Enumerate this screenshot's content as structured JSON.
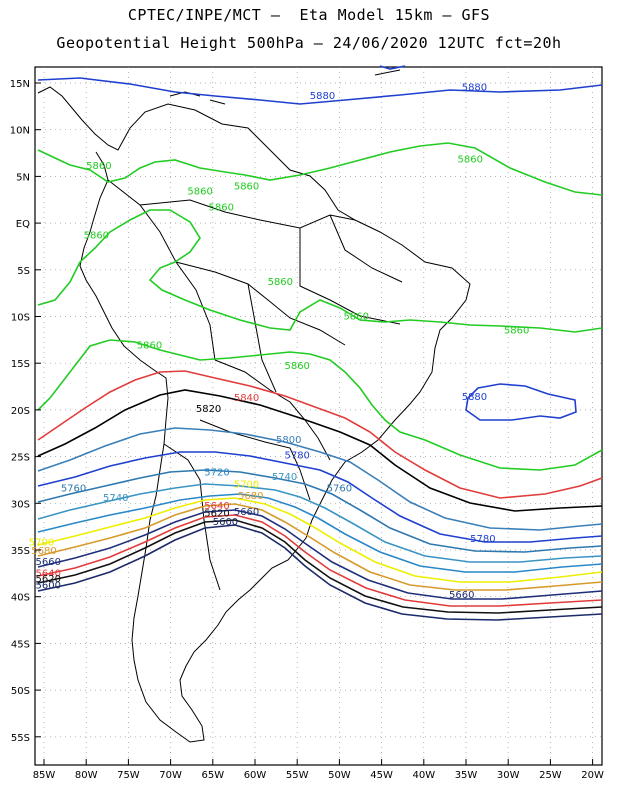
{
  "header": {
    "line1": "CPTEC/INPE/MCT –  Eta Model 15km – GFS",
    "line2": "Geopotential Height 500hPa – 24/06/2020 12UTC fct=20h"
  },
  "axes": {
    "lat_labels": [
      "15N",
      "10N",
      "5N",
      "EQ",
      "5S",
      "10S",
      "15S",
      "20S",
      "25S",
      "30S",
      "35S",
      "40S",
      "45S",
      "50S",
      "55S"
    ],
    "lon_labels": [
      "85W",
      "80W",
      "75W",
      "70W",
      "65W",
      "60W",
      "55W",
      "50W",
      "45W",
      "40W",
      "35W",
      "30W",
      "25W",
      "20W"
    ]
  },
  "colors": {
    "5880": "#1f3fd0",
    "5860": "#22cc22",
    "5840": "#e23b3b",
    "5820": "#000000",
    "5800": "#3a7fb8",
    "5780": "#1f3fd0",
    "5760": "#2e78b0",
    "5740": "#3a94c4",
    "5720": "#2a88c8",
    "5700": "#eeee00",
    "5680": "#d79a2a",
    "5660": "#1f2f7a",
    "5640": "#e23b3b",
    "5620": "#111111",
    "5600": "#1a2a6a"
  },
  "contour_labels": [
    {
      "text": "5880",
      "lon": -52,
      "lat": 13.7
    },
    {
      "text": "5880",
      "lon": -34,
      "lat": 14.6
    },
    {
      "text": "5880",
      "lon": -34,
      "lat": -18.5
    },
    {
      "text": "5860",
      "lon": -78.5,
      "lat": 6.2
    },
    {
      "text": "5860",
      "lon": -66.5,
      "lat": 3.5
    },
    {
      "text": "5860",
      "lon": -64,
      "lat": 1.8
    },
    {
      "text": "5860",
      "lon": -78.8,
      "lat": -1.2
    },
    {
      "text": "5860",
      "lon": -61,
      "lat": 4.0
    },
    {
      "text": "5860",
      "lon": -34.5,
      "lat": 6.9
    },
    {
      "text": "5860",
      "lon": -57,
      "lat": -6.2
    },
    {
      "text": "5860",
      "lon": -48,
      "lat": -9.9
    },
    {
      "text": "5860",
      "lon": -29,
      "lat": -11.4
    },
    {
      "text": "5860",
      "lon": -72.5,
      "lat": -13.0
    },
    {
      "text": "5860",
      "lon": -55,
      "lat": -15.2
    },
    {
      "text": "5840",
      "lon": -61,
      "lat": -18.6
    },
    {
      "text": "5820",
      "lon": -65.5,
      "lat": -19.8
    },
    {
      "text": "5800",
      "lon": -56,
      "lat": -23.1
    },
    {
      "text": "5780",
      "lon": -55,
      "lat": -24.8
    },
    {
      "text": "5780",
      "lon": -33,
      "lat": -33.7
    },
    {
      "text": "5760",
      "lon": -81.5,
      "lat": -28.3
    },
    {
      "text": "5760",
      "lon": -50,
      "lat": -28.3
    },
    {
      "text": "5740",
      "lon": -56.5,
      "lat": -27.1
    },
    {
      "text": "5740",
      "lon": -76.5,
      "lat": -29.3
    },
    {
      "text": "5720",
      "lon": -64.5,
      "lat": -26.6
    },
    {
      "text": "5700",
      "lon": -61,
      "lat": -27.9
    },
    {
      "text": "5680",
      "lon": -60.5,
      "lat": -29.1
    },
    {
      "text": "5680",
      "lon": -85,
      "lat": -35.0
    },
    {
      "text": "5700",
      "lon": -85.3,
      "lat": -34.1
    },
    {
      "text": "5660",
      "lon": -61,
      "lat": -30.8
    },
    {
      "text": "5660",
      "lon": -84.5,
      "lat": -36.2
    },
    {
      "text": "5640",
      "lon": -64.5,
      "lat": -30.2
    },
    {
      "text": "5640",
      "lon": -84.5,
      "lat": -37.4
    },
    {
      "text": "5620",
      "lon": -64.5,
      "lat": -31.0
    },
    {
      "text": "5620",
      "lon": -84.5,
      "lat": -38.0
    },
    {
      "text": "5600",
      "lon": -63.5,
      "lat": -31.9
    },
    {
      "text": "5600",
      "lon": -84.5,
      "lat": -38.7
    },
    {
      "text": "5660",
      "lon": -35.5,
      "lat": -39.7
    }
  ]
}
